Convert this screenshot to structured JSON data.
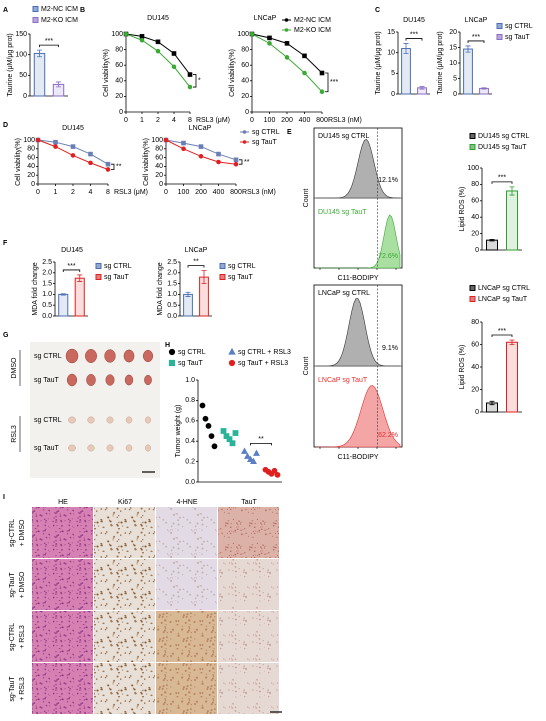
{
  "panel_letters": [
    "A",
    "B",
    "C",
    "D",
    "E",
    "F",
    "G",
    "H",
    "I"
  ],
  "chart_data": [
    {
      "type": "bar",
      "ylabel": "Taurine (μM/μg prot)",
      "categories": [
        "M2-NC ICM",
        "M2-KO ICM"
      ],
      "values": [
        103,
        28
      ],
      "errors": [
        8,
        6
      ],
      "colors": [
        "#4a6fb5",
        "#8a6cc4"
      ],
      "ylim": [
        0,
        150
      ],
      "yticks": [
        0,
        50,
        100,
        150
      ],
      "annotation": "***",
      "legend": true
    },
    {
      "type": "line",
      "title": "DU145",
      "ylabel": "Cell viability(%)",
      "xlabel": "RSL3 (μM)",
      "categories": [
        "0",
        "1",
        "2",
        "4",
        "8"
      ],
      "series": [
        {
          "name": "M2-NC ICM",
          "color": "#000000",
          "values": [
            100,
            97,
            90,
            75,
            48
          ]
        },
        {
          "name": "M2-KO ICM",
          "color": "#3aaa35",
          "values": [
            100,
            92,
            78,
            58,
            32
          ]
        }
      ],
      "ylim": [
        0,
        100
      ],
      "yticks": [
        0,
        20,
        40,
        60,
        80,
        100
      ],
      "annotation": "*",
      "legend": false
    },
    {
      "type": "line",
      "title": "LNCaP",
      "ylabel": "Cell viability(%)",
      "xlabel": "RSL3 (nM)",
      "categories": [
        "0",
        "100",
        "200",
        "400",
        "800"
      ],
      "series": [
        {
          "name": "M2-NC ICM",
          "color": "#000000",
          "values": [
            100,
            95,
            88,
            72,
            50
          ]
        },
        {
          "name": "M2-KO ICM",
          "color": "#3aaa35",
          "values": [
            100,
            88,
            70,
            50,
            26
          ]
        }
      ],
      "ylim": [
        0,
        100
      ],
      "yticks": [
        0,
        20,
        40,
        60,
        80,
        100
      ],
      "annotation": "***",
      "legend": true
    },
    {
      "type": "bar",
      "title": "DU145",
      "ylabel": "Taurine (μM/μg prot)",
      "categories": [
        "sg CTRL",
        "sg TauT"
      ],
      "values": [
        11,
        1.5
      ],
      "errors": [
        1.2,
        0.3
      ],
      "colors": [
        "#4a6fb5",
        "#8a6cc4"
      ],
      "ylim": [
        0,
        15
      ],
      "yticks": [
        0,
        5,
        10,
        15
      ],
      "annotation": "***",
      "legend": false
    },
    {
      "type": "bar",
      "title": "LNCaP",
      "ylabel": "Taurine (μM/μg prot)",
      "categories": [
        "sg CTRL",
        "sg TauT"
      ],
      "values": [
        14.5,
        1.8
      ],
      "errors": [
        1,
        0.2
      ],
      "colors": [
        "#4a6fb5",
        "#8a6cc4"
      ],
      "ylim": [
        0,
        20
      ],
      "yticks": [
        0,
        5,
        10,
        15,
        20
      ],
      "annotation": "***",
      "legend": true
    },
    {
      "type": "line",
      "title": "DU145",
      "ylabel": "Cell viability(%)",
      "xlabel": "RSL3 (μM)",
      "categories": [
        "0",
        "1",
        "2",
        "4",
        "8"
      ],
      "series": [
        {
          "name": "sg CTRL",
          "color": "#6a7fb5",
          "values": [
            100,
            95,
            85,
            68,
            45
          ]
        },
        {
          "name": "sg TauT",
          "color": "#e02020",
          "values": [
            100,
            85,
            65,
            48,
            33
          ]
        }
      ],
      "ylim": [
        0,
        100
      ],
      "yticks": [
        0,
        20,
        40,
        60,
        80,
        100
      ],
      "annotation": "**",
      "legend": false
    },
    {
      "type": "line",
      "title": "LNCaP",
      "ylabel": "Cell viability(%)",
      "xlabel": "RSL3 (nM)",
      "categories": [
        "0",
        "100",
        "200",
        "400",
        "800"
      ],
      "series": [
        {
          "name": "sg CTRL",
          "color": "#6a7fb5",
          "values": [
            100,
            93,
            85,
            68,
            55
          ]
        },
        {
          "name": "sg TauT",
          "color": "#e02020",
          "values": [
            100,
            80,
            63,
            50,
            45
          ]
        }
      ],
      "ylim": [
        0,
        100
      ],
      "yticks": [
        0,
        20,
        40,
        60,
        80,
        100
      ],
      "annotation": "**",
      "legend": true
    },
    {
      "type": "bar",
      "ylabel": "Lipid ROS (%)",
      "categories": [
        "DU145 sg CTRL",
        "DU145 sg TauT"
      ],
      "values": [
        12,
        72
      ],
      "errors": [
        1,
        5
      ],
      "colors": [
        "#000000",
        "#2ca02c"
      ],
      "ylim": [
        0,
        100
      ],
      "yticks": [
        0,
        20,
        40,
        60,
        80,
        100
      ],
      "annotation": "***",
      "legend": true
    },
    {
      "type": "bar",
      "ylabel": "Lipid ROS (%)",
      "categories": [
        "LNCaP sg CTRL",
        "LNCaP sg TauT"
      ],
      "values": [
        8,
        62
      ],
      "errors": [
        1.5,
        2
      ],
      "colors": [
        "#000000",
        "#e02020"
      ],
      "ylim": [
        0,
        80
      ],
      "yticks": [
        0,
        20,
        40,
        60,
        80
      ],
      "annotation": "***",
      "legend": true
    },
    {
      "type": "bar",
      "title": "DU145",
      "ylabel": "MDA fold change",
      "categories": [
        "sg CTRL",
        "sg TauT"
      ],
      "values": [
        1.0,
        1.75
      ],
      "errors": [
        0.03,
        0.15
      ],
      "colors": [
        "#4a6fb5",
        "#e02020"
      ],
      "ylim": [
        0,
        2.5
      ],
      "yticks": [
        {
          "value": 0,
          "label": "0.0"
        },
        0.5,
        {
          "value": 1,
          "label": "1.0"
        },
        1.5,
        {
          "value": 2,
          "label": "2.0"
        },
        2.5
      ],
      "annotation": "***",
      "legend": true
    },
    {
      "type": "bar",
      "title": "LNCaP",
      "ylabel": "MDA fold change",
      "categories": [
        "sg CTRL",
        "sg TauT"
      ],
      "values": [
        1.0,
        1.8
      ],
      "errors": [
        0.1,
        0.3
      ],
      "colors": [
        "#4a6fb5",
        "#e02020"
      ],
      "ylim": [
        0,
        2.5
      ],
      "yticks": [
        {
          "value": 0,
          "label": "0.0"
        },
        0.5,
        {
          "value": 1,
          "label": "1.0"
        },
        1.5,
        {
          "value": 2,
          "label": "2.0"
        },
        2.5
      ],
      "annotation": "**",
      "legend": true
    },
    {
      "type": "dot",
      "ylabel": "Tumor weight (g)",
      "series": [
        {
          "name": "sg CTRL",
          "color": "#000000",
          "marker": "circle",
          "values": [
            0.75,
            0.62,
            0.55,
            0.45,
            0.35
          ]
        },
        {
          "name": "sg TauT",
          "color": "#2bb39a",
          "marker": "square",
          "values": [
            0.5,
            0.45,
            0.42,
            0.38,
            0.48
          ]
        },
        {
          "name": "sg CTRL + RSL3",
          "color": "#5b7fc4",
          "marker": "triangle",
          "values": [
            0.3,
            0.25,
            0.22,
            0.2,
            0.28
          ]
        },
        {
          "name": "sg TauT + RSL3",
          "color": "#e02020",
          "marker": "circle",
          "values": [
            0.12,
            0.1,
            0.08,
            0.11,
            0.07
          ]
        }
      ],
      "ylim": [
        0,
        1.0
      ],
      "yticks": [
        {
          "value": 0,
          "label": "0.0"
        },
        0.2,
        0.4,
        0.6,
        0.8,
        {
          "value": 1,
          "label": "1.0"
        }
      ],
      "annotation": "**",
      "legend": true
    }
  ],
  "flow": [
    {
      "ylabel": "Count",
      "xlabel": "C11-BODIPY",
      "labels": [
        "DU145 sg CTRL",
        "DU145 sg TauT"
      ],
      "percents": [
        "12.1%",
        "72.6%"
      ]
    },
    {
      "ylabel": "Count",
      "xlabel": "C11-BODIPY",
      "labels": [
        "LNCaP sg CTRL",
        "LNCaP sg TauT"
      ],
      "percents": [
        "9.1%",
        "62.2%"
      ]
    }
  ],
  "tumor_photos": {
    "groups": [
      "DMSO",
      "RSL3"
    ],
    "rows": [
      "sg CTRL",
      "sg TauT",
      "sg CTRL",
      "sg TauT"
    ]
  },
  "ihc": {
    "columns": [
      "HE",
      "Ki67",
      "4-HNE",
      "TauT"
    ],
    "rows": [
      [
        "sg-CTRL",
        "+ DMSO"
      ],
      [
        "sg-TauT",
        "+ DMSO"
      ],
      [
        "sg-CTRL",
        "+ RSL3"
      ],
      [
        "sg-TauT",
        "+ RSL3"
      ]
    ]
  }
}
